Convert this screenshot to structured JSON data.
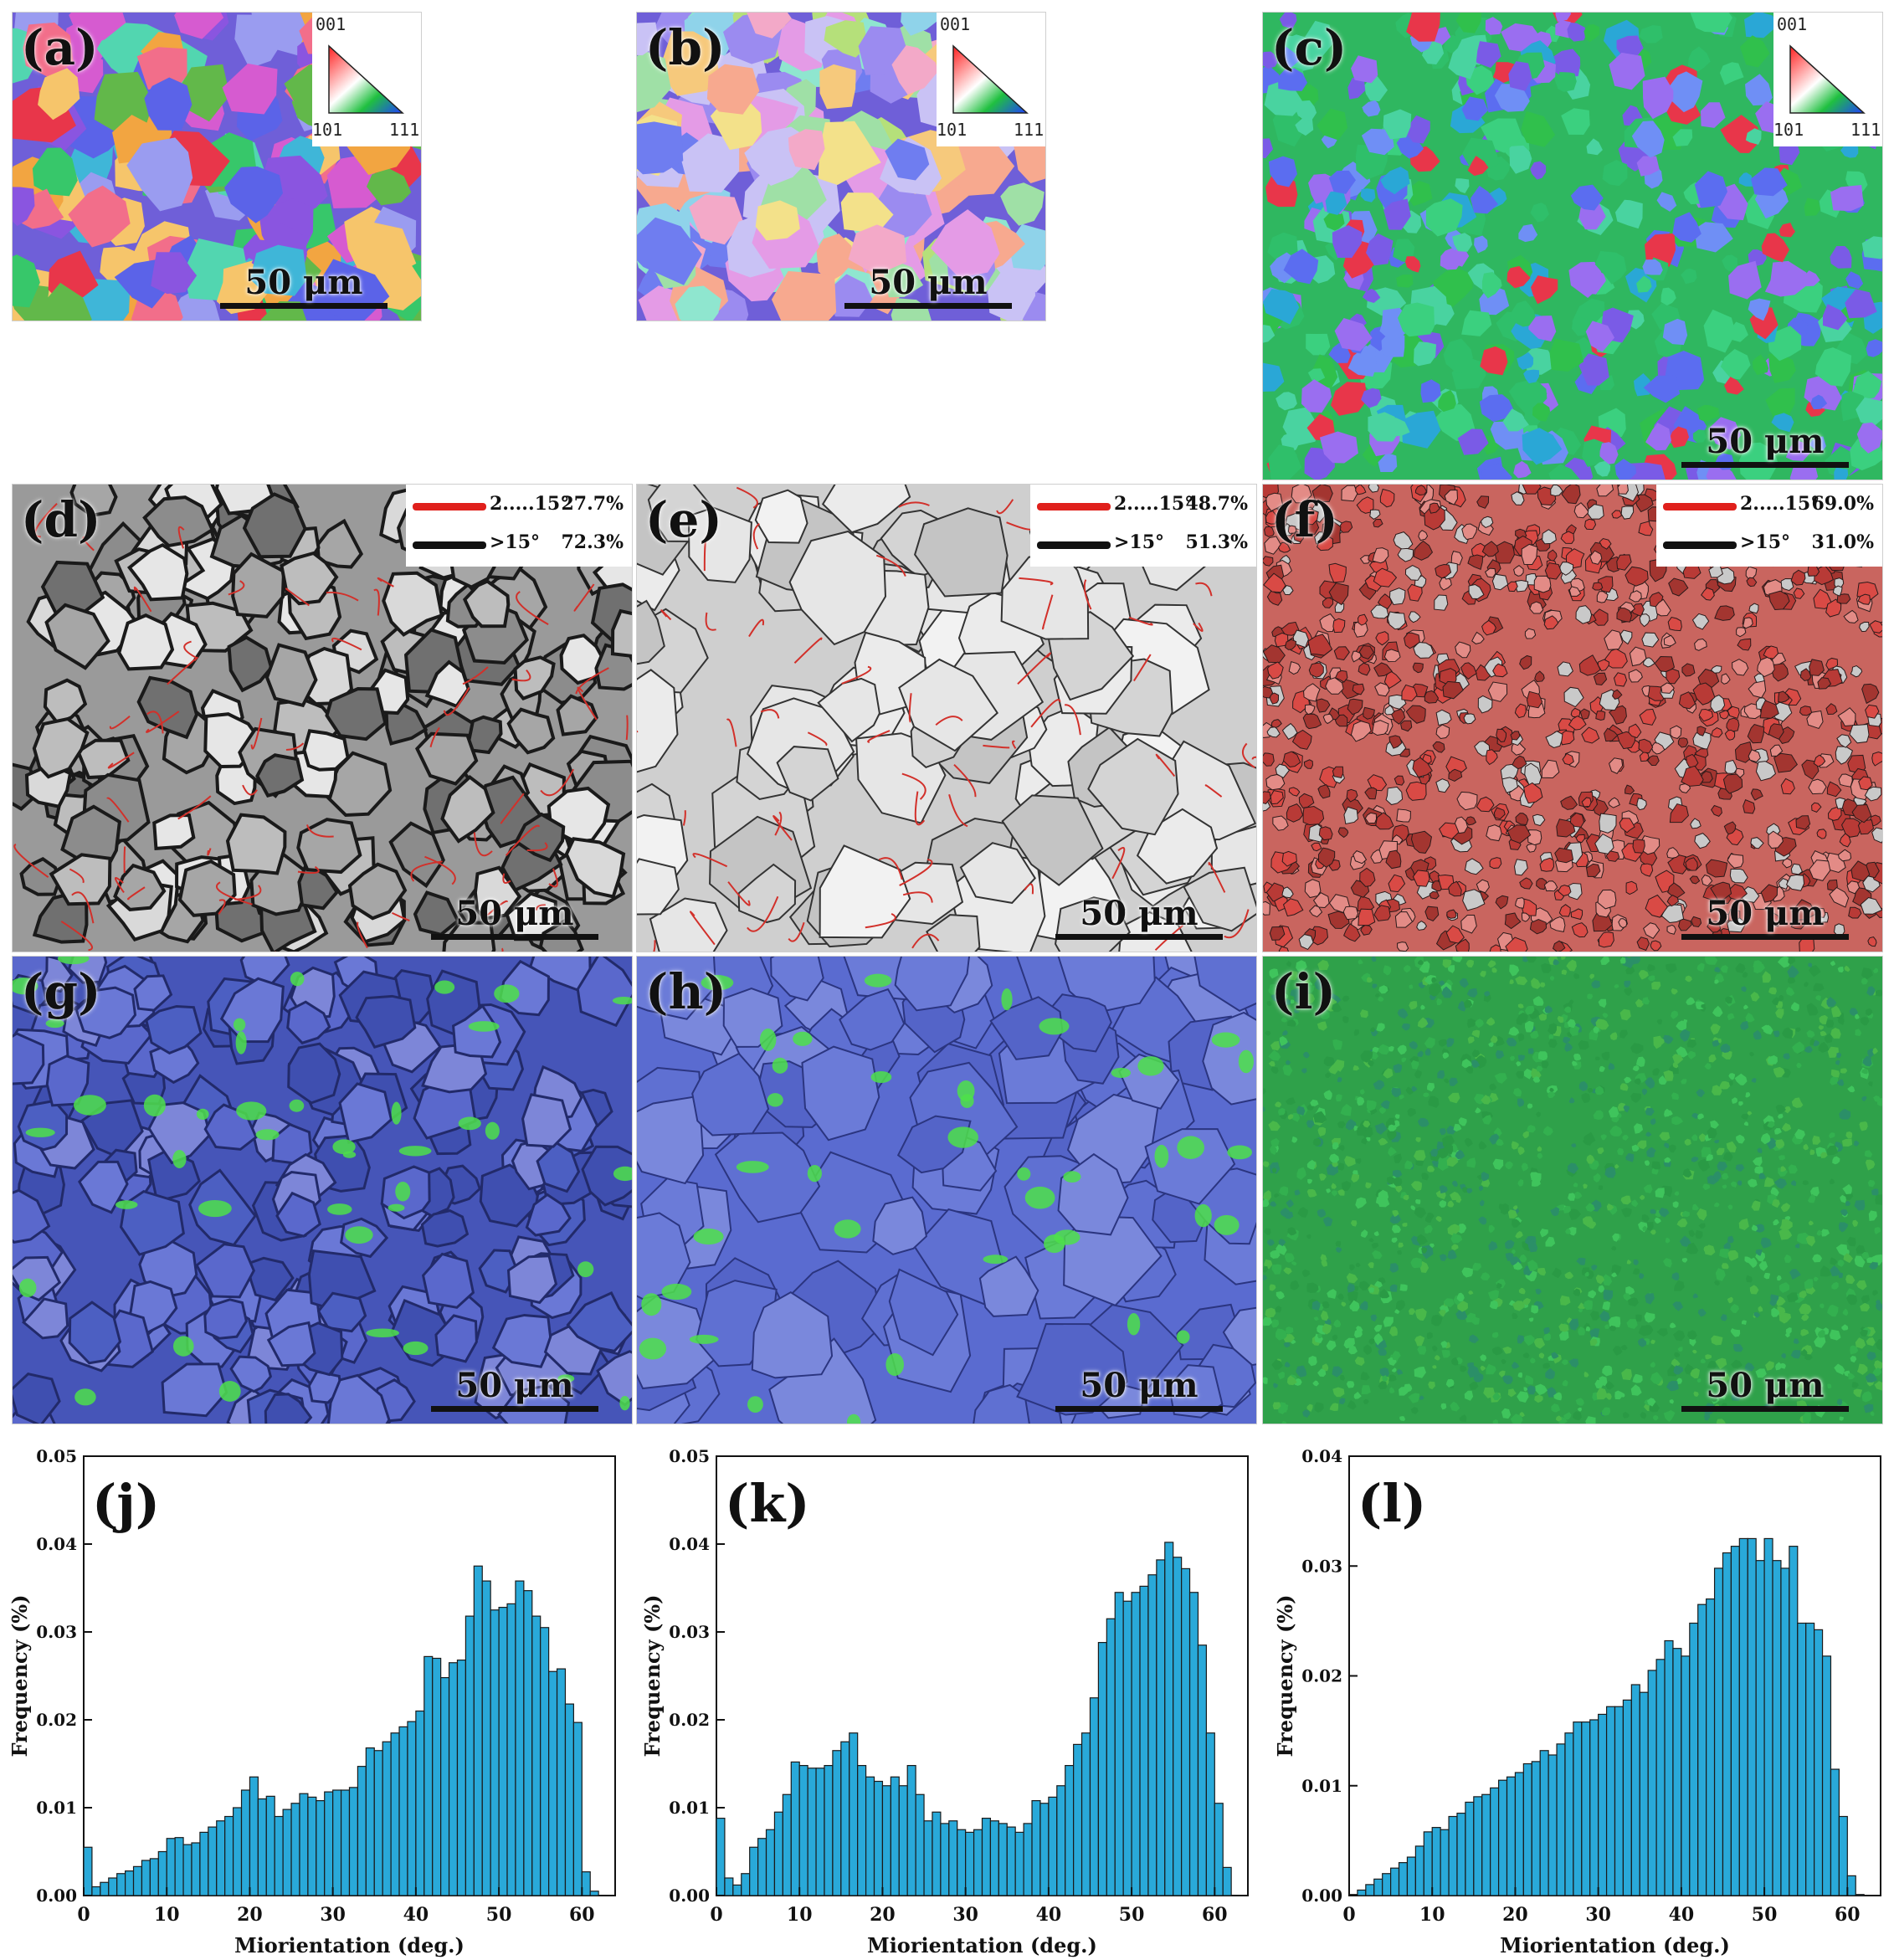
{
  "panels": [
    {
      "label": "(a)",
      "scale": "50 μm",
      "ipf": {
        "top": "001",
        "left": "101",
        "right": "111"
      }
    },
    {
      "label": "(b)",
      "scale": "50 μm",
      "ipf": {
        "top": "001",
        "left": "101",
        "right": "111"
      }
    },
    {
      "label": "(c)",
      "scale": "50 μm",
      "ipf": {
        "top": "001",
        "left": "101",
        "right": "111"
      }
    },
    {
      "label": "(d)",
      "scale": "50 μm",
      "legend": {
        "low_label": "2.....15°",
        "low_pct": "27.7%",
        "high_label": ">15°",
        "high_pct": "72.3%"
      }
    },
    {
      "label": "(e)",
      "scale": "50 μm",
      "legend": {
        "low_label": "2.....15°",
        "low_pct": "48.7%",
        "high_label": ">15°",
        "high_pct": "51.3%"
      }
    },
    {
      "label": "(f)",
      "scale": "50 μm",
      "legend": {
        "low_label": "2.....15°",
        "low_pct": "69.0%",
        "high_label": ">15°",
        "high_pct": "31.0%"
      }
    },
    {
      "label": "(g)",
      "scale": "50 μm"
    },
    {
      "label": "(h)",
      "scale": "50 μm"
    },
    {
      "label": "(i)",
      "scale": "50 μm"
    }
  ],
  "colors": {
    "low_angle": "#e0201c",
    "high_angle": "#111111",
    "bar_fill": "#29a9d9",
    "bar_stroke": "#1a1a1a"
  },
  "chart_data": [
    {
      "type": "bar",
      "label": "(j)",
      "xlabel": "Miorientation (deg.)",
      "ylabel": "Frequency (%)",
      "xlim": [
        0,
        64
      ],
      "ylim": [
        0,
        0.05
      ],
      "xticks": [
        0,
        10,
        20,
        30,
        40,
        50,
        60
      ],
      "yticks": [
        0.0,
        0.01,
        0.02,
        0.03,
        0.04,
        0.05
      ],
      "ytick_labels": [
        "0.00",
        "0.01",
        "0.02",
        "0.03",
        "0.04",
        "0.05"
      ],
      "x_start": 0,
      "bin_width": 1,
      "values": [
        0.0055,
        0.001,
        0.0015,
        0.002,
        0.0025,
        0.0028,
        0.0033,
        0.004,
        0.0042,
        0.005,
        0.0065,
        0.0066,
        0.0058,
        0.006,
        0.0072,
        0.0078,
        0.0085,
        0.009,
        0.01,
        0.012,
        0.0135,
        0.011,
        0.0113,
        0.009,
        0.0098,
        0.0105,
        0.0116,
        0.0112,
        0.0108,
        0.0118,
        0.012,
        0.012,
        0.0123,
        0.0147,
        0.0168,
        0.0165,
        0.0175,
        0.0185,
        0.0192,
        0.0198,
        0.021,
        0.0272,
        0.027,
        0.0248,
        0.0265,
        0.0268,
        0.0318,
        0.0375,
        0.0358,
        0.0325,
        0.0328,
        0.0332,
        0.0358,
        0.0347,
        0.0318,
        0.0305,
        0.0255,
        0.0258,
        0.0218,
        0.0197,
        0.0027,
        0.0005
      ]
    },
    {
      "type": "bar",
      "label": "(k)",
      "xlabel": "Miorientation (deg.)",
      "ylabel": "Frequency (%)",
      "xlim": [
        0,
        64
      ],
      "ylim": [
        0,
        0.05
      ],
      "xticks": [
        0,
        10,
        20,
        30,
        40,
        50,
        60
      ],
      "yticks": [
        0.0,
        0.01,
        0.02,
        0.03,
        0.04,
        0.05
      ],
      "ytick_labels": [
        "0.00",
        "0.01",
        "0.02",
        "0.03",
        "0.04",
        "0.05"
      ],
      "x_start": 0,
      "bin_width": 1,
      "values": [
        0.0088,
        0.002,
        0.0012,
        0.0025,
        0.0055,
        0.0065,
        0.0075,
        0.0095,
        0.0115,
        0.0152,
        0.0148,
        0.0145,
        0.0145,
        0.0148,
        0.0165,
        0.0175,
        0.0185,
        0.0148,
        0.0135,
        0.013,
        0.0125,
        0.0135,
        0.0125,
        0.0148,
        0.0115,
        0.0085,
        0.0095,
        0.0082,
        0.0085,
        0.0075,
        0.0072,
        0.0075,
        0.0088,
        0.0085,
        0.0082,
        0.0078,
        0.0072,
        0.0082,
        0.0108,
        0.0105,
        0.0112,
        0.0125,
        0.0148,
        0.0172,
        0.0185,
        0.0225,
        0.0288,
        0.0315,
        0.0345,
        0.0335,
        0.0345,
        0.0352,
        0.0365,
        0.0382,
        0.0402,
        0.0385,
        0.0372,
        0.0345,
        0.0285,
        0.0185,
        0.0105,
        0.0032
      ]
    },
    {
      "type": "bar",
      "label": "(l)",
      "xlabel": "Miorientation (deg.)",
      "ylabel": "Frequency (%)",
      "xlim": [
        0,
        64
      ],
      "ylim": [
        0,
        0.04
      ],
      "xticks": [
        0,
        10,
        20,
        30,
        40,
        50,
        60
      ],
      "yticks": [
        0.0,
        0.01,
        0.02,
        0.03,
        0.04
      ],
      "ytick_labels": [
        "0.00",
        "0.01",
        "0.02",
        "0.03",
        "0.04"
      ],
      "x_start": 0,
      "bin_width": 1,
      "values": [
        0.0001,
        0.0005,
        0.001,
        0.0015,
        0.002,
        0.0025,
        0.003,
        0.0035,
        0.0045,
        0.0058,
        0.0062,
        0.006,
        0.0072,
        0.0075,
        0.0085,
        0.009,
        0.0092,
        0.0098,
        0.0105,
        0.0108,
        0.0112,
        0.012,
        0.0122,
        0.0132,
        0.0128,
        0.0138,
        0.0148,
        0.0158,
        0.0158,
        0.016,
        0.0165,
        0.0172,
        0.0172,
        0.0178,
        0.0192,
        0.0185,
        0.0205,
        0.0215,
        0.0232,
        0.0225,
        0.0218,
        0.0248,
        0.0265,
        0.027,
        0.0298,
        0.0312,
        0.0318,
        0.0325,
        0.0325,
        0.0305,
        0.0325,
        0.0305,
        0.0298,
        0.0318,
        0.0248,
        0.0248,
        0.0242,
        0.0218,
        0.0115,
        0.0072,
        0.0018,
        0.0001
      ]
    }
  ]
}
